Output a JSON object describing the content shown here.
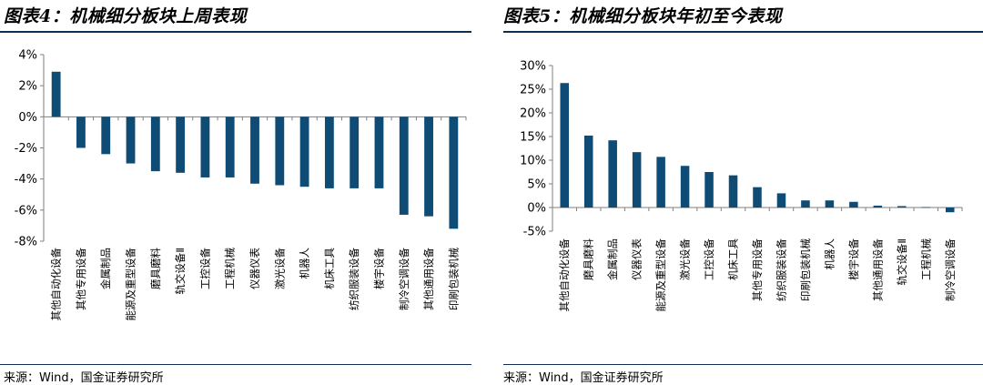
{
  "left_panel": {
    "title": "图表4：机械细分板块上周表现",
    "source": "来源：Wind，国金证券研究所"
  },
  "right_panel": {
    "title": "图表5：机械细分板块年初至今表现",
    "source": "来源：Wind，国金证券研究所"
  },
  "colors": {
    "bar": "#0f4c75",
    "rule": "#0c2f53",
    "axis": "#7f7f7f"
  },
  "chart_data": [
    {
      "type": "bar",
      "title": "图表4：机械细分板块上周表现",
      "categories": [
        "其他自动化设备",
        "其他专用设备",
        "金属制品",
        "能源及重型设备",
        "磨具磨料",
        "轨交设备Ⅱ",
        "工控设备",
        "工程机械",
        "仪器仪表",
        "激光设备",
        "机器人",
        "机床工具",
        "纺织服装设备",
        "楼宇设备",
        "制冷空调设备",
        "其他通用设备",
        "印刷包装机械"
      ],
      "values": [
        2.9,
        -2.0,
        -2.4,
        -3.0,
        -3.5,
        -3.6,
        -3.9,
        -3.9,
        -4.3,
        -4.4,
        -4.5,
        -4.6,
        -4.6,
        -4.6,
        -6.3,
        -6.4,
        -7.2
      ],
      "ylim": [
        -8,
        4
      ],
      "yticks": [
        "4%",
        "2%",
        "0%",
        "-2%",
        "-4%",
        "-6%",
        "-8%"
      ],
      "grid": false
    },
    {
      "type": "bar",
      "title": "图表5：机械细分板块年初至今表现",
      "categories": [
        "其他自动化设备",
        "磨具磨料",
        "金属制品",
        "仪器仪表",
        "能源及重型设备",
        "激光设备",
        "工控设备",
        "机床工具",
        "其他专用设备",
        "纺织服装设备",
        "印刷包装机械",
        "机器人",
        "楼宇设备",
        "其他通用设备",
        "轨交设备Ⅱ",
        "工程机械",
        "制冷空调设备"
      ],
      "values": [
        26.3,
        15.2,
        14.2,
        11.7,
        10.7,
        8.8,
        7.5,
        6.8,
        4.3,
        3.0,
        1.5,
        1.5,
        1.2,
        0.4,
        0.3,
        0.1,
        -1.0
      ],
      "ylim": [
        -5,
        30
      ],
      "yticks": [
        "30%",
        "25%",
        "20%",
        "15%",
        "10%",
        "5%",
        "0%",
        "-5%"
      ],
      "grid": false
    }
  ]
}
